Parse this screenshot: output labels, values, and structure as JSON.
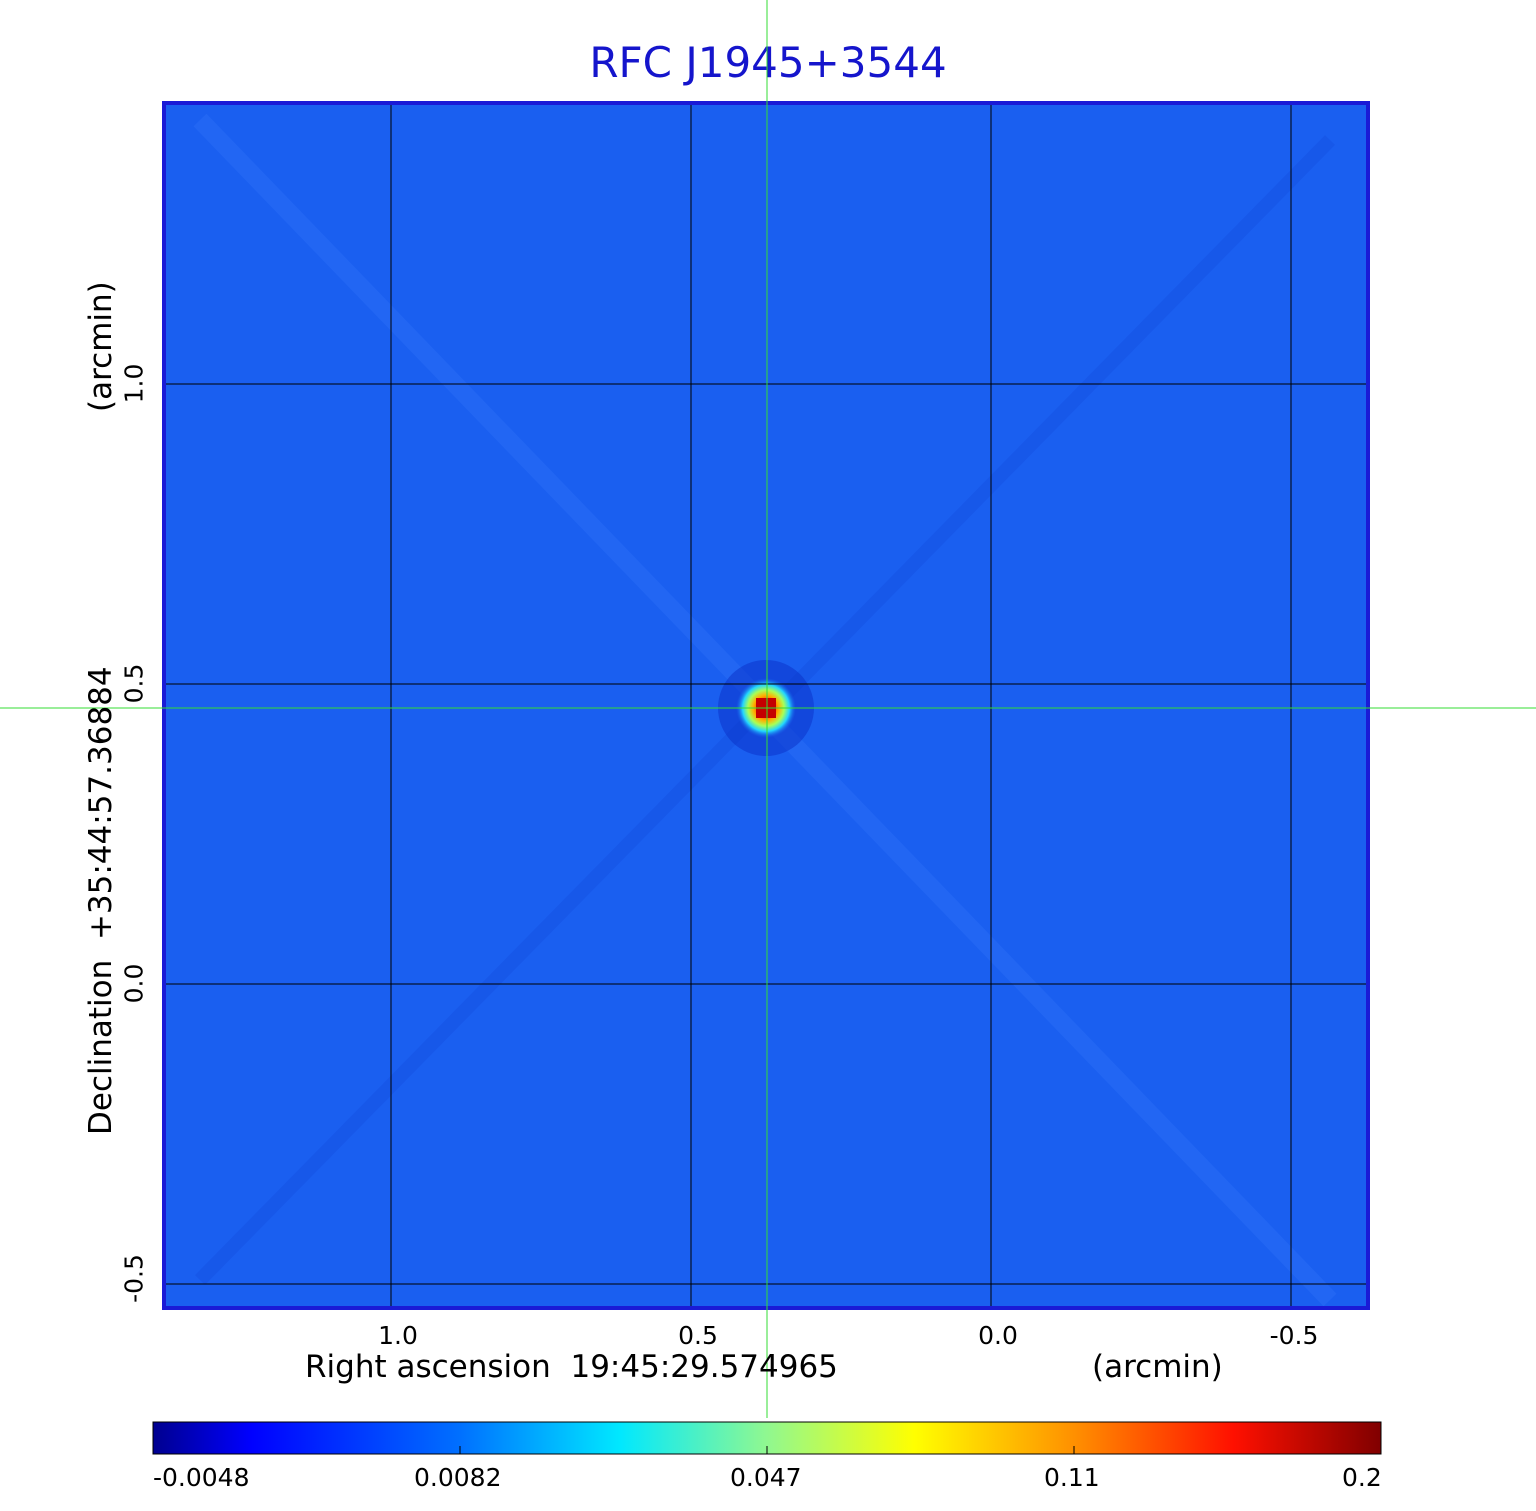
{
  "title": "RFC J1945+3544",
  "x_axis": {
    "label": "Right ascension  19:45:29.574965",
    "unit": "(arcmin)",
    "ticks": [
      "1.0",
      "0.5",
      "0.0",
      "-0.5"
    ]
  },
  "y_axis": {
    "label": "Declination  +35:44:57.36884",
    "unit": "(arcmin)",
    "ticks": [
      "1.0",
      "0.5",
      "0.0",
      "-0.5"
    ]
  },
  "colorbar": {
    "ticks": [
      "-0.0048",
      "0.0082",
      "0.047",
      "0.11",
      "0.2"
    ]
  },
  "colors": {
    "title": "#1515cc",
    "frame": "#1a1ad6",
    "background_field": "#1a5ff0",
    "crosshair": "#33dd33",
    "grid": "#000000"
  }
}
